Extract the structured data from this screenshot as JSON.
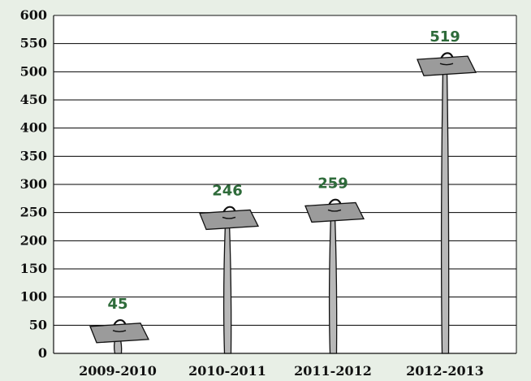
{
  "chart_data": {
    "type": "bar",
    "categories": [
      "2009-2010",
      "2010-2011",
      "2011-2012",
      "2012-2013"
    ],
    "values": [
      45,
      246,
      259,
      519
    ],
    "ylim": [
      0,
      600
    ],
    "yticks": [
      0,
      50,
      100,
      150,
      200,
      250,
      300,
      350,
      400,
      450,
      500,
      550,
      600
    ],
    "grid": true,
    "legend": false,
    "colors": {
      "background": "#e8efe6",
      "plot_area": "#ffffff",
      "gridline": "#000000",
      "data_label": "#2e6b3a",
      "sign_fill": "#9b9b9b",
      "stake_fill": "#b8b8b8",
      "outline": "#111111"
    }
  }
}
